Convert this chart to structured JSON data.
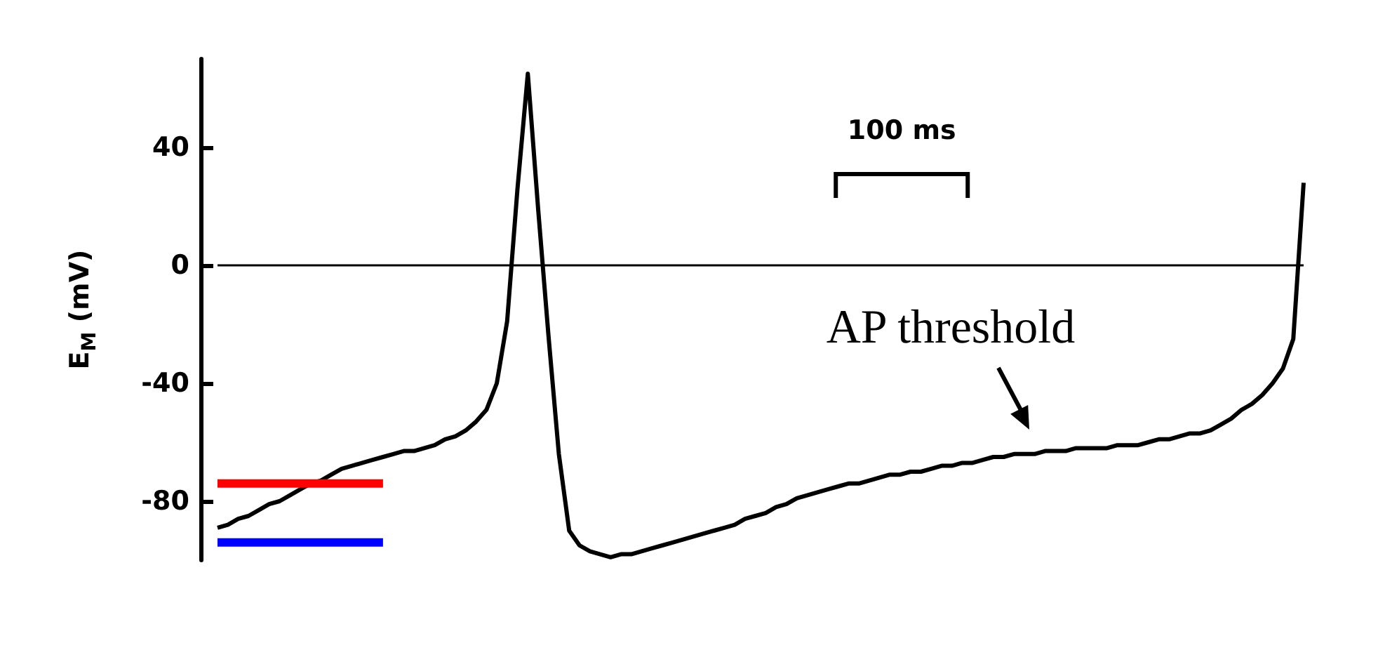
{
  "chart_data": {
    "type": "line",
    "ylabel": "E$_{M}$ (mV)",
    "categories": [
      null,
      null,
      null,
      null,
      null,
      null,
      null,
      null,
      null,
      null,
      null,
      null,
      null,
      null,
      null,
      null,
      null,
      null,
      null,
      null,
      null,
      null,
      null,
      null,
      null,
      null,
      null,
      null,
      null,
      null,
      null,
      null,
      null,
      null,
      null,
      null,
      null,
      null,
      null,
      null,
      null,
      null,
      null,
      null,
      null,
      null,
      null,
      null,
      null,
      null,
      null,
      null,
      null,
      null,
      null,
      null,
      null,
      null,
      null,
      null,
      null,
      null,
      null,
      null,
      null,
      null,
      null,
      null,
      null,
      null,
      null,
      null,
      null,
      null,
      null,
      null,
      null,
      null,
      null,
      null,
      null,
      null,
      null,
      null,
      null,
      null,
      null,
      null,
      null,
      null,
      null,
      null,
      null,
      null,
      null,
      null,
      null,
      null,
      null,
      null,
      null,
      null,
      null,
      null,
      null,
      null
    ],
    "ylim": [
      -100,
      70
    ],
    "yticks": [
      40,
      0,
      -40,
      -80
    ],
    "tick_labels": "y",
    "grid": false,
    "line_style": "solid",
    "series": [
      {
        "color": "#000000",
        "values": [
          -89,
          -88,
          -86,
          -85,
          -83,
          -81,
          -80,
          -78,
          -76,
          -74,
          -73,
          -71,
          -69,
          -68,
          -67,
          -66,
          -65,
          -64,
          -63,
          -63,
          -62,
          -61,
          -59,
          -58,
          -56,
          -53,
          -49,
          -40,
          -19,
          26,
          65,
          19,
          -24,
          -64,
          -90,
          -95,
          -97,
          -98,
          -99,
          -98,
          -98,
          -97,
          -96,
          -95,
          -94,
          -93,
          -92,
          -91,
          -90,
          -89,
          -88,
          -86,
          -85,
          -84,
          -82,
          -81,
          -79,
          -78,
          -77,
          -76,
          -75,
          -74,
          -74,
          -73,
          -72,
          -71,
          -71,
          -70,
          -70,
          -69,
          -68,
          -68,
          -67,
          -67,
          -66,
          -65,
          -65,
          -64,
          -64,
          -64,
          -63,
          -63,
          -63,
          -62,
          -62,
          -62,
          -62,
          -61,
          -61,
          -61,
          -60,
          -59,
          -59,
          -58,
          -57,
          -57,
          -56,
          -54,
          -52,
          -49,
          -47,
          -44,
          -40,
          -35,
          -25,
          28
        ]
      },
      {
        "color": "#ff0000",
        "values": [
          -74,
          -74,
          -74,
          -74,
          -74,
          -74,
          -74,
          -74,
          -74,
          -74,
          -74,
          -74,
          -74,
          -74,
          -74,
          -74,
          -74,
          null,
          null,
          null,
          null,
          null,
          null,
          null,
          null,
          null,
          null,
          null,
          null,
          null,
          null,
          null,
          null,
          null,
          null,
          null,
          null,
          null,
          null,
          null,
          null,
          null,
          null,
          null,
          null,
          null,
          null,
          null,
          null,
          null,
          null,
          null,
          null,
          null,
          null,
          null,
          null,
          null,
          null,
          null,
          null,
          null,
          null,
          null,
          null,
          null,
          null,
          null,
          null,
          null,
          null,
          null,
          null,
          null,
          null,
          null,
          null,
          null,
          null,
          null,
          null,
          null,
          null,
          null,
          null,
          null,
          null,
          null,
          null,
          null,
          null,
          null,
          null,
          null,
          null,
          null,
          null,
          null,
          null,
          null,
          null,
          null,
          null,
          null,
          null,
          null
        ]
      },
      {
        "color": "#0000ff",
        "values": [
          -94,
          -94,
          -94,
          -94,
          -94,
          -94,
          -94,
          -94,
          -94,
          -94,
          -94,
          -94,
          -94,
          -94,
          -94,
          -94,
          -94,
          null,
          null,
          null,
          null,
          null,
          null,
          null,
          null,
          null,
          null,
          null,
          null,
          null,
          null,
          null,
          null,
          null,
          null,
          null,
          null,
          null,
          null,
          null,
          null,
          null,
          null,
          null,
          null,
          null,
          null,
          null,
          null,
          null,
          null,
          null,
          null,
          null,
          null,
          null,
          null,
          null,
          null,
          null,
          null,
          null,
          null,
          null,
          null,
          null,
          null,
          null,
          null,
          null,
          null,
          null,
          null,
          null,
          null,
          null,
          null,
          null,
          null,
          null,
          null,
          null,
          null,
          null,
          null,
          null,
          null,
          null,
          null,
          null,
          null,
          null,
          null,
          null,
          null,
          null,
          null,
          null,
          null,
          null,
          null,
          null,
          null,
          null,
          null,
          null
        ]
      }
    ],
    "ref_lines": [
      {
        "axis": "y",
        "value": 0,
        "color": "#000000"
      }
    ],
    "annotations": [
      "100 ms",
      "AP threshold"
    ]
  }
}
